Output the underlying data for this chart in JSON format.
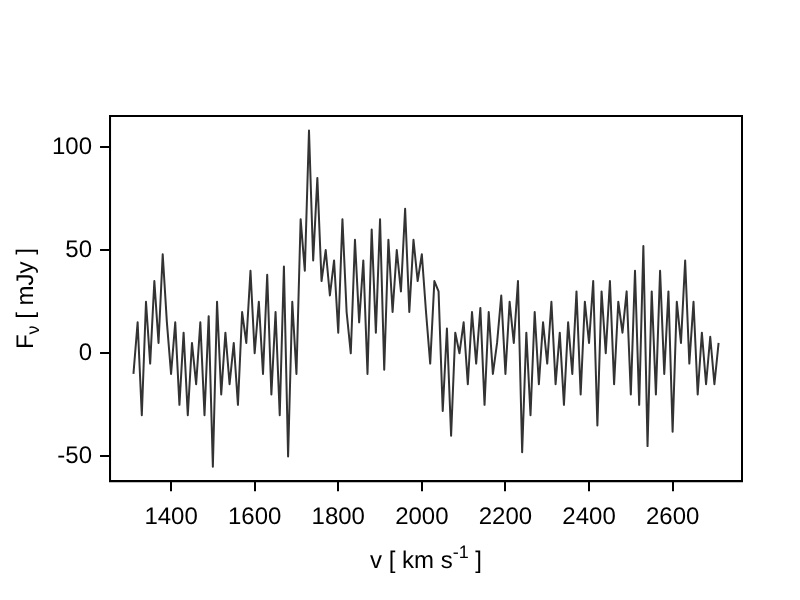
{
  "chart_data": {
    "type": "line",
    "xlabel": "v [ km s$^{-1}$ ]",
    "ylabel": "F$_{ν}$ [ mJy ]",
    "x": [
      1310,
      1320,
      1330,
      1340,
      1350,
      1360,
      1370,
      1380,
      1390,
      1400,
      1410,
      1420,
      1430,
      1440,
      1450,
      1460,
      1470,
      1480,
      1490,
      1500,
      1510,
      1520,
      1530,
      1540,
      1550,
      1560,
      1570,
      1580,
      1590,
      1600,
      1610,
      1620,
      1630,
      1640,
      1650,
      1660,
      1670,
      1680,
      1690,
      1700,
      1710,
      1720,
      1730,
      1740,
      1750,
      1760,
      1770,
      1780,
      1790,
      1800,
      1810,
      1820,
      1830,
      1840,
      1850,
      1860,
      1870,
      1880,
      1890,
      1900,
      1910,
      1920,
      1930,
      1940,
      1950,
      1960,
      1970,
      1980,
      1990,
      2000,
      2010,
      2020,
      2030,
      2040,
      2050,
      2060,
      2070,
      2080,
      2090,
      2100,
      2110,
      2120,
      2130,
      2140,
      2150,
      2160,
      2170,
      2180,
      2190,
      2200,
      2210,
      2220,
      2230,
      2240,
      2250,
      2260,
      2270,
      2280,
      2290,
      2300,
      2310,
      2320,
      2330,
      2340,
      2350,
      2360,
      2370,
      2380,
      2390,
      2400,
      2410,
      2420,
      2430,
      2440,
      2450,
      2460,
      2470,
      2480,
      2490,
      2500,
      2510,
      2520,
      2530,
      2540,
      2550,
      2560,
      2570,
      2580,
      2590,
      2600,
      2610,
      2620,
      2630,
      2640,
      2650,
      2660,
      2670,
      2680,
      2690,
      2700,
      2710
    ],
    "series": [
      {
        "color": "#333333",
        "values": [
          -10,
          15,
          -30,
          25,
          -5,
          35,
          5,
          48,
          15,
          -10,
          15,
          -25,
          10,
          -30,
          5,
          -15,
          15,
          -30,
          18,
          -55,
          25,
          -20,
          10,
          -15,
          5,
          -25,
          20,
          5,
          40,
          0,
          25,
          -10,
          38,
          -20,
          20,
          -30,
          42,
          -50,
          25,
          -10,
          65,
          40,
          108,
          45,
          85,
          35,
          50,
          28,
          45,
          10,
          65,
          20,
          0,
          55,
          15,
          45,
          -10,
          60,
          10,
          65,
          -8,
          55,
          20,
          50,
          30,
          70,
          20,
          55,
          35,
          48,
          20,
          -5,
          35,
          30,
          -28,
          12,
          -40,
          10,
          0,
          15,
          -15,
          20,
          -5,
          22,
          -25,
          20,
          -10,
          5,
          28,
          -10,
          25,
          5,
          35,
          -48,
          10,
          -30,
          20,
          -15,
          15,
          -5,
          25,
          -15,
          10,
          -25,
          15,
          -10,
          30,
          -20,
          25,
          5,
          35,
          -35,
          30,
          0,
          35,
          -15,
          25,
          10,
          30,
          -20,
          40,
          -25,
          52,
          -45,
          30,
          -20,
          40,
          -10,
          30,
          -38,
          25,
          5,
          45,
          -5,
          25,
          -20,
          10,
          -15,
          8,
          -15,
          5
        ]
      }
    ],
    "xlim": [
      1254,
      2766
    ],
    "xticks": [
      1400,
      1600,
      1800,
      2000,
      2200,
      2400,
      2600
    ],
    "ylim": [
      -62,
      115
    ],
    "yticks": [
      -50,
      0,
      50,
      100
    ],
    "grid": false,
    "legend": false,
    "marker": "none",
    "line_style": "solid"
  }
}
